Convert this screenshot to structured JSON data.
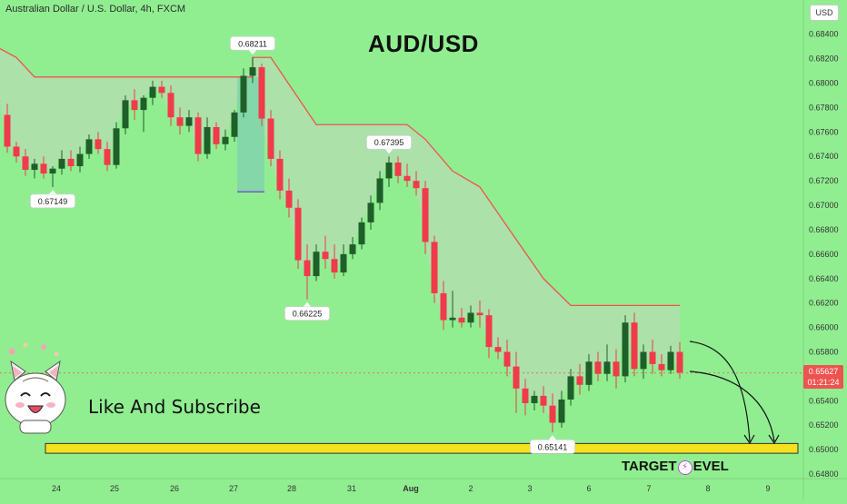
{
  "header": {
    "symbol_description": "Australian Dollar / U.S. Dollar, 4h, FXCM",
    "currency_badge": "USD"
  },
  "chart_data": {
    "type": "candlestick",
    "title": "AUD/USD",
    "timeframe": "4h",
    "ylim": [
      0.648,
      0.6845
    ],
    "y_ticks": [
      "0.68400",
      "0.68200",
      "0.68000",
      "0.67800",
      "0.67600",
      "0.67400",
      "0.67200",
      "0.67000",
      "0.66800",
      "0.66600",
      "0.66400",
      "0.66200",
      "0.66000",
      "0.65800",
      "0.65600",
      "0.65400",
      "0.65200",
      "0.65000",
      "0.64800"
    ],
    "x_labels": [
      "24",
      "25",
      "26",
      "27",
      "28",
      "31",
      "Aug",
      "2",
      "3",
      "6",
      "7",
      "8",
      "9"
    ],
    "candles": [
      {
        "o": 0.6774,
        "h": 0.6783,
        "l": 0.6743,
        "c": 0.6748
      },
      {
        "o": 0.6748,
        "h": 0.6752,
        "l": 0.6735,
        "c": 0.674
      },
      {
        "o": 0.674,
        "h": 0.6746,
        "l": 0.6724,
        "c": 0.6729
      },
      {
        "o": 0.6729,
        "h": 0.6738,
        "l": 0.6722,
        "c": 0.6734
      },
      {
        "o": 0.6734,
        "h": 0.674,
        "l": 0.6722,
        "c": 0.6726
      },
      {
        "o": 0.6726,
        "h": 0.6732,
        "l": 0.6715,
        "c": 0.673
      },
      {
        "o": 0.673,
        "h": 0.6745,
        "l": 0.6725,
        "c": 0.6738
      },
      {
        "o": 0.6738,
        "h": 0.6745,
        "l": 0.6728,
        "c": 0.6732
      },
      {
        "o": 0.6732,
        "h": 0.6748,
        "l": 0.6727,
        "c": 0.6742
      },
      {
        "o": 0.6742,
        "h": 0.6758,
        "l": 0.6738,
        "c": 0.6754
      },
      {
        "o": 0.6754,
        "h": 0.676,
        "l": 0.6742,
        "c": 0.6746
      },
      {
        "o": 0.6746,
        "h": 0.6752,
        "l": 0.6728,
        "c": 0.6733
      },
      {
        "o": 0.6733,
        "h": 0.6768,
        "l": 0.673,
        "c": 0.6763
      },
      {
        "o": 0.6763,
        "h": 0.679,
        "l": 0.6758,
        "c": 0.6786
      },
      {
        "o": 0.6786,
        "h": 0.6795,
        "l": 0.677,
        "c": 0.6778
      },
      {
        "o": 0.6778,
        "h": 0.679,
        "l": 0.676,
        "c": 0.6788
      },
      {
        "o": 0.6788,
        "h": 0.6802,
        "l": 0.6782,
        "c": 0.6797
      },
      {
        "o": 0.6797,
        "h": 0.6802,
        "l": 0.6788,
        "c": 0.6792
      },
      {
        "o": 0.6792,
        "h": 0.6798,
        "l": 0.6765,
        "c": 0.6772
      },
      {
        "o": 0.6772,
        "h": 0.678,
        "l": 0.6758,
        "c": 0.6765
      },
      {
        "o": 0.6765,
        "h": 0.6778,
        "l": 0.676,
        "c": 0.6772
      },
      {
        "o": 0.6772,
        "h": 0.6776,
        "l": 0.6736,
        "c": 0.6742
      },
      {
        "o": 0.6742,
        "h": 0.6772,
        "l": 0.6738,
        "c": 0.6764
      },
      {
        "o": 0.6764,
        "h": 0.6768,
        "l": 0.6746,
        "c": 0.675
      },
      {
        "o": 0.675,
        "h": 0.6762,
        "l": 0.6745,
        "c": 0.6756
      },
      {
        "o": 0.6756,
        "h": 0.6778,
        "l": 0.6752,
        "c": 0.6776
      },
      {
        "o": 0.6776,
        "h": 0.6812,
        "l": 0.6772,
        "c": 0.6806
      },
      {
        "o": 0.6806,
        "h": 0.6821,
        "l": 0.68,
        "c": 0.6813
      },
      {
        "o": 0.6813,
        "h": 0.6816,
        "l": 0.6765,
        "c": 0.6771
      },
      {
        "o": 0.6771,
        "h": 0.6778,
        "l": 0.6732,
        "c": 0.6738
      },
      {
        "o": 0.6738,
        "h": 0.6745,
        "l": 0.6705,
        "c": 0.6712
      },
      {
        "o": 0.6712,
        "h": 0.6722,
        "l": 0.669,
        "c": 0.6698
      },
      {
        "o": 0.6698,
        "h": 0.6705,
        "l": 0.6648,
        "c": 0.6655
      },
      {
        "o": 0.6655,
        "h": 0.6668,
        "l": 0.6623,
        "c": 0.6642
      },
      {
        "o": 0.6642,
        "h": 0.6668,
        "l": 0.6638,
        "c": 0.6662
      },
      {
        "o": 0.6662,
        "h": 0.6675,
        "l": 0.6648,
        "c": 0.6656
      },
      {
        "o": 0.6656,
        "h": 0.6668,
        "l": 0.664,
        "c": 0.6645
      },
      {
        "o": 0.6645,
        "h": 0.6668,
        "l": 0.6642,
        "c": 0.666
      },
      {
        "o": 0.666,
        "h": 0.6674,
        "l": 0.6656,
        "c": 0.6668
      },
      {
        "o": 0.6668,
        "h": 0.669,
        "l": 0.6664,
        "c": 0.6686
      },
      {
        "o": 0.6686,
        "h": 0.6708,
        "l": 0.668,
        "c": 0.6702
      },
      {
        "o": 0.6702,
        "h": 0.6728,
        "l": 0.6696,
        "c": 0.6722
      },
      {
        "o": 0.6722,
        "h": 0.674,
        "l": 0.6715,
        "c": 0.6735
      },
      {
        "o": 0.6735,
        "h": 0.674,
        "l": 0.6718,
        "c": 0.6724
      },
      {
        "o": 0.6724,
        "h": 0.6734,
        "l": 0.6715,
        "c": 0.672
      },
      {
        "o": 0.672,
        "h": 0.6728,
        "l": 0.6708,
        "c": 0.6714
      },
      {
        "o": 0.6714,
        "h": 0.672,
        "l": 0.666,
        "c": 0.667
      },
      {
        "o": 0.667,
        "h": 0.6675,
        "l": 0.662,
        "c": 0.6628
      },
      {
        "o": 0.6628,
        "h": 0.6638,
        "l": 0.6598,
        "c": 0.6606
      },
      {
        "o": 0.6606,
        "h": 0.663,
        "l": 0.66,
        "c": 0.6608
      },
      {
        "o": 0.6608,
        "h": 0.6616,
        "l": 0.66,
        "c": 0.6604
      },
      {
        "o": 0.6604,
        "h": 0.6618,
        "l": 0.66,
        "c": 0.6612
      },
      {
        "o": 0.6612,
        "h": 0.6622,
        "l": 0.66,
        "c": 0.661
      },
      {
        "o": 0.661,
        "h": 0.6615,
        "l": 0.6575,
        "c": 0.6584
      },
      {
        "o": 0.6584,
        "h": 0.6592,
        "l": 0.6574,
        "c": 0.658
      },
      {
        "o": 0.658,
        "h": 0.659,
        "l": 0.656,
        "c": 0.6568
      },
      {
        "o": 0.6568,
        "h": 0.658,
        "l": 0.653,
        "c": 0.655
      },
      {
        "o": 0.655,
        "h": 0.6558,
        "l": 0.6528,
        "c": 0.6538
      },
      {
        "o": 0.6538,
        "h": 0.6548,
        "l": 0.6532,
        "c": 0.6544
      },
      {
        "o": 0.6544,
        "h": 0.6552,
        "l": 0.653,
        "c": 0.6536
      },
      {
        "o": 0.6536,
        "h": 0.6546,
        "l": 0.6514,
        "c": 0.6522
      },
      {
        "o": 0.6522,
        "h": 0.6548,
        "l": 0.6518,
        "c": 0.6541
      },
      {
        "o": 0.6541,
        "h": 0.6566,
        "l": 0.6536,
        "c": 0.656
      },
      {
        "o": 0.656,
        "h": 0.657,
        "l": 0.6545,
        "c": 0.6553
      },
      {
        "o": 0.6553,
        "h": 0.6578,
        "l": 0.6548,
        "c": 0.6572
      },
      {
        "o": 0.6572,
        "h": 0.658,
        "l": 0.6556,
        "c": 0.6562
      },
      {
        "o": 0.6562,
        "h": 0.6586,
        "l": 0.6556,
        "c": 0.6572
      },
      {
        "o": 0.6572,
        "h": 0.6582,
        "l": 0.655,
        "c": 0.656
      },
      {
        "o": 0.656,
        "h": 0.661,
        "l": 0.6555,
        "c": 0.6604
      },
      {
        "o": 0.6604,
        "h": 0.6612,
        "l": 0.656,
        "c": 0.6566
      },
      {
        "o": 0.6566,
        "h": 0.6586,
        "l": 0.6558,
        "c": 0.658
      },
      {
        "o": 0.658,
        "h": 0.659,
        "l": 0.6562,
        "c": 0.657
      },
      {
        "o": 0.657,
        "h": 0.6578,
        "l": 0.656,
        "c": 0.6565
      },
      {
        "o": 0.6565,
        "h": 0.6585,
        "l": 0.6562,
        "c": 0.658
      },
      {
        "o": 0.658,
        "h": 0.6588,
        "l": 0.6558,
        "c": 0.6563
      }
    ],
    "stop_line": [
      {
        "i": -2,
        "v": 0.6833
      },
      {
        "i": 1,
        "v": 0.6821
      },
      {
        "i": 3,
        "v": 0.6805
      },
      {
        "i": 27,
        "v": 0.6805
      },
      {
        "i": 27,
        "v": 0.6821
      },
      {
        "i": 29,
        "v": 0.6821
      },
      {
        "i": 34,
        "v": 0.6766
      },
      {
        "i": 44,
        "v": 0.6766
      },
      {
        "i": 46,
        "v": 0.6754
      },
      {
        "i": 49,
        "v": 0.6728
      },
      {
        "i": 52,
        "v": 0.6715
      },
      {
        "i": 56,
        "v": 0.6672
      },
      {
        "i": 59,
        "v": 0.664
      },
      {
        "i": 62,
        "v": 0.6618
      },
      {
        "i": 74,
        "v": 0.6618
      }
    ],
    "annotations": [
      {
        "text": "0.68211",
        "price": 0.6821,
        "candle": 27,
        "pos": "above"
      },
      {
        "text": "0.67149",
        "price": 0.6715,
        "candle": 5,
        "pos": "below"
      },
      {
        "text": "0.67395",
        "price": 0.674,
        "candle": 42,
        "pos": "above"
      },
      {
        "text": "0.66225",
        "price": 0.6623,
        "candle": 33,
        "pos": "below"
      },
      {
        "text": "0.65141",
        "price": 0.6514,
        "candle": 60,
        "pos": "below"
      }
    ],
    "current_price": 0.65627,
    "target_zone": {
      "from": 0.6497,
      "to": 0.6505,
      "color": "#f5e11d"
    },
    "colors": {
      "up": "#1f5f2a",
      "down": "#ef3b4a",
      "stop_line": "#ef5350",
      "fill": "#b2deae"
    }
  },
  "overlay": {
    "cta": "Like And Subscribe",
    "target_prefix": "TARGET",
    "target_suffix": "EVEL",
    "mascot_icon": "cat-mascot-icon"
  },
  "price_tag": {
    "value": "0.65627",
    "countdown": "01:21:24"
  }
}
